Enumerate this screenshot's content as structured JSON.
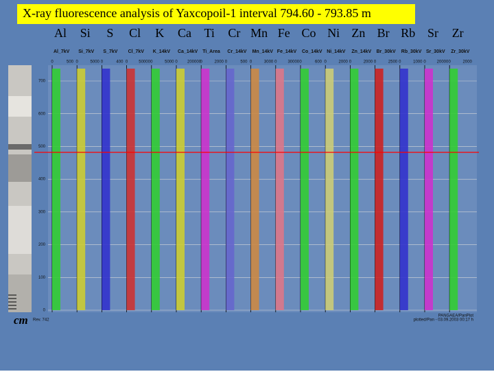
{
  "title": "X-ray fluorescence analysis of Yaxcopoil-1 interval 794.60 - 793.85 m",
  "depth_axis": {
    "unit": "cm",
    "ticks": [
      "0",
      "100",
      "200",
      "300",
      "400",
      "500",
      "600",
      "700"
    ]
  },
  "tracks": [
    {
      "element": "Al",
      "label": "Al_7kV",
      "ticks": [
        "0",
        "500"
      ]
    },
    {
      "element": "Si",
      "label": "Si_7kV",
      "ticks": [
        "0",
        "5000"
      ]
    },
    {
      "element": "S",
      "label": "S_7kV",
      "ticks": [
        "0",
        "400"
      ]
    },
    {
      "element": "Cl",
      "label": "Cl_7kV",
      "ticks": [
        "0",
        "50000"
      ]
    },
    {
      "element": "K",
      "label": "K_14kV",
      "ticks": [
        "0",
        "5000"
      ]
    },
    {
      "element": "Ca",
      "label": "Ca_14kV",
      "ticks": [
        "0",
        "200000"
      ]
    },
    {
      "element": "Ti",
      "label": "Ti_Area",
      "ticks": [
        "0",
        "2000"
      ]
    },
    {
      "element": "Cr",
      "label": "Cr_14kV",
      "ticks": [
        "0",
        "500"
      ]
    },
    {
      "element": "Mn",
      "label": "Mn_14kV",
      "ticks": [
        "0",
        "3000"
      ]
    },
    {
      "element": "Fe",
      "label": "Fe_14kV",
      "ticks": [
        "0",
        "30000"
      ]
    },
    {
      "element": "Co",
      "label": "Co_14kV",
      "ticks": [
        "0",
        "600"
      ]
    },
    {
      "element": "Ni",
      "label": "Ni_14kV",
      "ticks": [
        "0",
        "2000"
      ]
    },
    {
      "element": "Zn",
      "label": "Zn_14kV",
      "ticks": [
        "0",
        "2000"
      ]
    },
    {
      "element": "Br",
      "label": "Br_30kV",
      "ticks": [
        "0",
        "2500"
      ]
    },
    {
      "element": "Rb",
      "label": "Rb_30kV",
      "ticks": [
        "0",
        "1000"
      ]
    },
    {
      "element": "Sr",
      "label": "Sr_30kV",
      "ticks": [
        "0",
        "20000"
      ]
    },
    {
      "element": "Zr",
      "label": "Zr_30kV",
      "ticks": [
        "0",
        "2000"
      ]
    }
  ],
  "footer": {
    "left": "Rev. 742",
    "right_top": "PANGAEA/PanPlot",
    "right_bottom": "plotted/Pan - 03.09.2003 00:17 h"
  }
}
